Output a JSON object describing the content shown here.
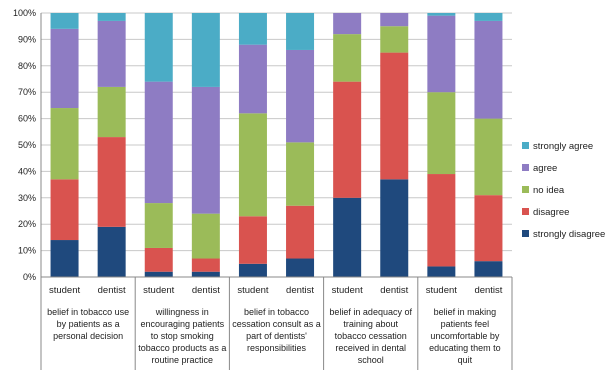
{
  "chart_data": {
    "type": "bar",
    "stacked": true,
    "y_ticks": [
      "0%",
      "10%",
      "20%",
      "30%",
      "40%",
      "50%",
      "60%",
      "70%",
      "80%",
      "90%",
      "100%"
    ],
    "ylim": [
      0,
      100
    ],
    "grid": true,
    "legend_position": "right",
    "groups": [
      {
        "label": [
          "belief in tobacco use",
          "by patients as a",
          "personal decision"
        ]
      },
      {
        "label": [
          "willingness in",
          "encouraging  patients",
          "to stop smoking",
          "tobacco products as a",
          "routine practice"
        ]
      },
      {
        "label": [
          "belief in tobacco",
          "cessation consult as a",
          "part of dentists'",
          "responsibilities"
        ]
      },
      {
        "label": [
          "belief in adequacy of",
          "training about",
          "tobacco cessation",
          "received in dental",
          "school"
        ]
      },
      {
        "label": [
          "belief in making",
          "patients feel",
          "uncomfortable by",
          "educating them to",
          "quit"
        ]
      }
    ],
    "categories": [
      "student",
      "dentist",
      "student",
      "dentist",
      "student",
      "dentist",
      "student",
      "dentist",
      "student",
      "dentist"
    ],
    "series": [
      {
        "name": "strongly disagree",
        "color": "#1f497d",
        "values": [
          14,
          19,
          2,
          2,
          5,
          7,
          30,
          37,
          4,
          6
        ]
      },
      {
        "name": "disagree",
        "color": "#d9534f",
        "values": [
          23,
          34,
          9,
          5,
          18,
          20,
          44,
          48,
          35,
          25
        ]
      },
      {
        "name": "no idea",
        "color": "#9bbb59",
        "values": [
          27,
          19,
          17,
          17,
          39,
          24,
          18,
          10,
          31,
          29
        ]
      },
      {
        "name": "agree",
        "color": "#8e7cc3",
        "values": [
          30,
          25,
          46,
          48,
          26,
          35,
          8,
          5,
          29,
          37
        ]
      },
      {
        "name": "strongly agree",
        "color": "#4bacc6",
        "values": [
          6,
          3,
          26,
          28,
          12,
          14,
          0,
          0,
          1,
          3
        ]
      }
    ]
  }
}
